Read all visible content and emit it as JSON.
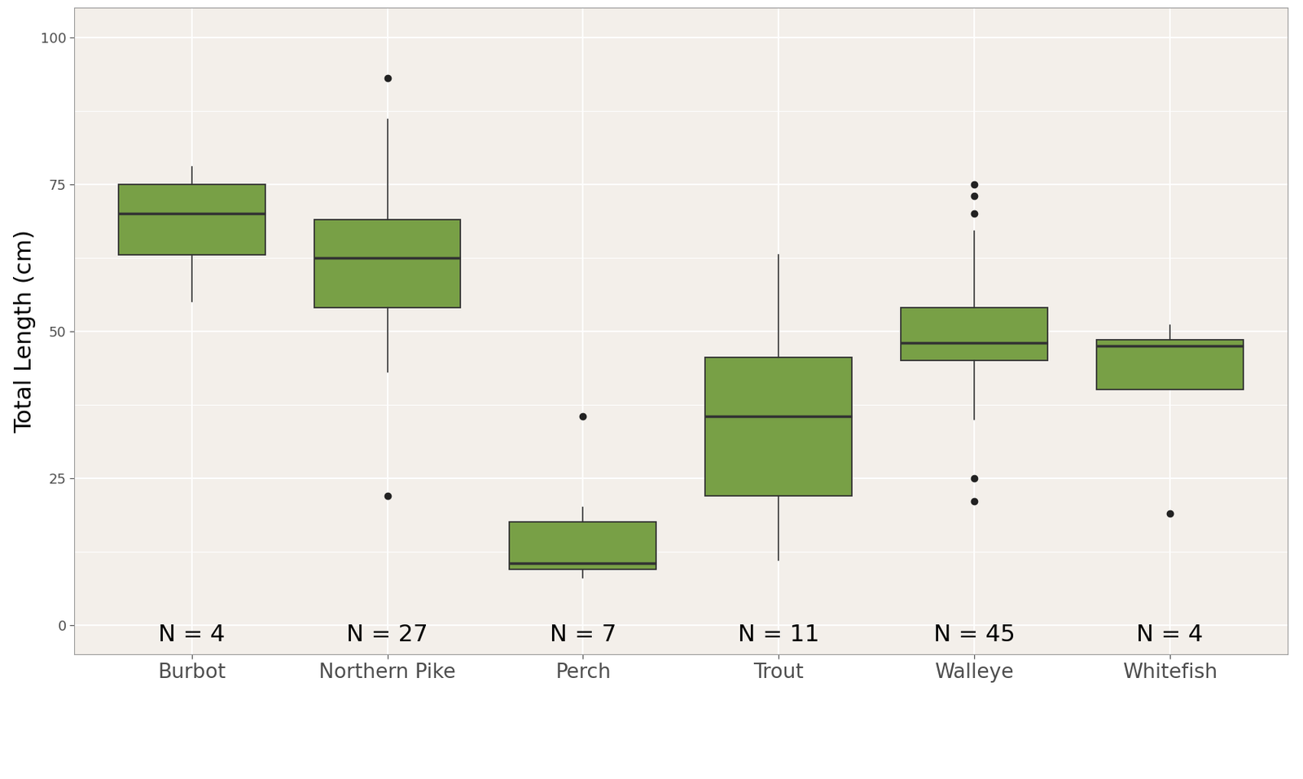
{
  "chart_data": {
    "type": "box",
    "y_label": "Total Length (cm)",
    "categories": [
      "Burbot",
      "Northern Pike",
      "Perch",
      "Trout",
      "Walleye",
      "Whitefish"
    ],
    "count_labels": [
      "N = 4",
      "N = 27",
      "N = 7",
      "N = 11",
      "N = 45",
      "N = 4"
    ],
    "whislo": [
      55,
      43,
      8,
      11,
      35,
      40
    ],
    "q1": [
      63,
      54,
      9.5,
      22,
      45,
      40
    ],
    "med": [
      70,
      62.5,
      10.5,
      35.5,
      48,
      47.5
    ],
    "q3": [
      75,
      69,
      17.5,
      45.5,
      54,
      48.5
    ],
    "whishi": [
      78,
      86,
      20,
      63,
      67,
      51
    ],
    "fliers": [
      [],
      [
        93,
        22
      ],
      [
        35.5
      ],
      [],
      [
        75,
        73,
        70,
        25,
        21
      ],
      [
        19
      ]
    ],
    "color": "#78a046",
    "ylim": [
      -5,
      105
    ],
    "yticks": [
      0,
      25,
      50,
      75,
      100
    ],
    "grid": true
  }
}
